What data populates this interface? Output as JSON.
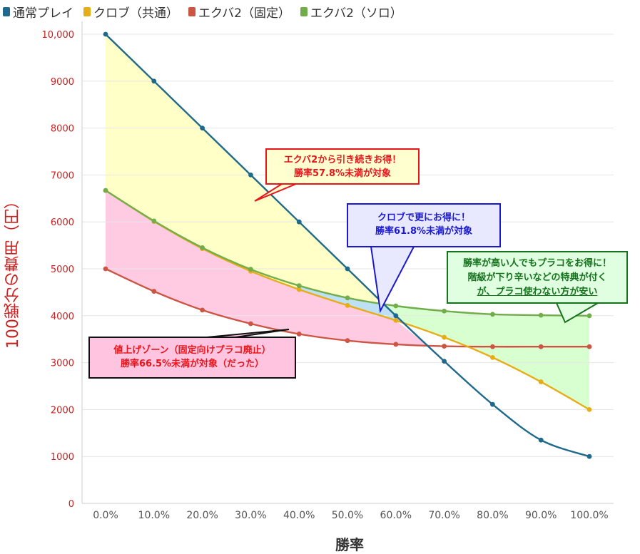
{
  "legend": [
    {
      "label": "通常プレイ",
      "color": "#1f6a8c"
    },
    {
      "label": "クロブ（共通）",
      "color": "#e6ad17"
    },
    {
      "label": "エクバ2（固定）",
      "color": "#cc5544"
    },
    {
      "label": "エクバ2（ソロ）",
      "color": "#72ad4c"
    }
  ],
  "chart_data": {
    "type": "line",
    "x": [
      0,
      10,
      20,
      30,
      40,
      50,
      60,
      70,
      80,
      90,
      100
    ],
    "categories": [
      "0.0%",
      "10.0%",
      "20.0%",
      "30.0%",
      "40.0%",
      "50.0%",
      "60.0%",
      "70.0%",
      "80.0%",
      "90.0%",
      "100.0%"
    ],
    "series": [
      {
        "name": "通常プレイ",
        "color": "#1f6a8c",
        "values": [
          10000,
          9000,
          8000,
          7000,
          6000,
          5000,
          4000,
          3030,
          2110,
          1350,
          1000
        ]
      },
      {
        "name": "クロブ（共通）",
        "color": "#e6ad17",
        "values": [
          6670,
          6010,
          5430,
          4950,
          4560,
          4220,
          3900,
          3540,
          3110,
          2590,
          2000
        ]
      },
      {
        "name": "エクバ2（固定）",
        "color": "#cc5544",
        "values": [
          5000,
          4520,
          4120,
          3830,
          3610,
          3470,
          3390,
          3350,
          3340,
          3340,
          3340
        ]
      },
      {
        "name": "エクバ2（ソロ）",
        "color": "#72ad4c",
        "values": [
          6670,
          6020,
          5450,
          4990,
          4640,
          4380,
          4210,
          4100,
          4030,
          4010,
          4000
        ]
      }
    ],
    "yticks": [
      "0",
      "1000",
      "2000",
      "3000",
      "4000",
      "5000",
      "6000",
      "7000",
      "8000",
      "9000",
      "10,000"
    ],
    "ylim": [
      0,
      10000
    ],
    "xlim": [
      0,
      100
    ],
    "xlabel": "勝率",
    "ylabel": "100戦分の費用（円）",
    "grid": true,
    "legend_position": "top-left",
    "annotations": [
      {
        "id": "ann-ecb2-continue",
        "lines": [
          "エクバ2から引き続きお得！",
          "勝率57.8%未満が対象"
        ],
        "text_color": "#e8161c",
        "fill": "#ffffd0",
        "border": "#e8161c"
      },
      {
        "id": "ann-crob-better",
        "lines": [
          "クロブで更にお得に！",
          "勝率61.8%未満が対象"
        ],
        "text_color": "#1a1acc",
        "fill": "#e8e8ff",
        "border": "#1a1acc"
      },
      {
        "id": "ann-high-win",
        "lines": [
          "勝率が高い人でもプラコをお得に！",
          "階級が下り辛いなどの特典が付く",
          "が、プラコ使わない方が安い"
        ],
        "text_color": "#14731c",
        "fill": "#e0ffe0",
        "border": "#14731c"
      },
      {
        "id": "ann-price-up",
        "lines": [
          "値上げゾーン（固定向けプラコ廃止）",
          "勝率66.5%未満が対象（だった）"
        ],
        "text_color": "#e8161c",
        "fill": "#ffc4e0",
        "border": "#111111"
      }
    ],
    "region_colors": {
      "yellow": "#ffffc8",
      "pink": "#ffc8e0",
      "blue": "#bde0f4",
      "green": "#d8ffd0"
    }
  }
}
